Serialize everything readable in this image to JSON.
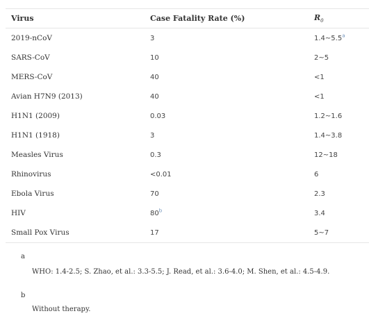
{
  "table": {
    "headers": {
      "virus": "Virus",
      "cfr": "Case Fatality Rate (%)",
      "r0_base": "R",
      "r0_sub": "0"
    },
    "rows": [
      {
        "virus": "2019-nCoV",
        "cfr": "3",
        "cfr_note": "",
        "r0": "1.4~5.5",
        "r0_note": "a"
      },
      {
        "virus": "SARS-CoV",
        "cfr": "10",
        "cfr_note": "",
        "r0": "2~5",
        "r0_note": ""
      },
      {
        "virus": "MERS-CoV",
        "cfr": "40",
        "cfr_note": "",
        "r0": "<1",
        "r0_note": ""
      },
      {
        "virus": "Avian H7N9 (2013)",
        "cfr": "40",
        "cfr_note": "",
        "r0": "<1",
        "r0_note": ""
      },
      {
        "virus": "H1N1 (2009)",
        "cfr": "0.03",
        "cfr_note": "",
        "r0": "1.2~1.6",
        "r0_note": ""
      },
      {
        "virus": "H1N1 (1918)",
        "cfr": "3",
        "cfr_note": "",
        "r0": "1.4~3.8",
        "r0_note": ""
      },
      {
        "virus": "Measles Virus",
        "cfr": "0.3",
        "cfr_note": "",
        "r0": "12~18",
        "r0_note": ""
      },
      {
        "virus": "Rhinovirus",
        "cfr": "<0.01",
        "cfr_note": "",
        "r0": "6",
        "r0_note": ""
      },
      {
        "virus": "Ebola Virus",
        "cfr": "70",
        "cfr_note": "",
        "r0": "2.3",
        "r0_note": ""
      },
      {
        "virus": "HIV",
        "cfr": "80",
        "cfr_note": "b",
        "r0": "3.4",
        "r0_note": ""
      },
      {
        "virus": "Small Pox Virus",
        "cfr": "17",
        "cfr_note": "",
        "r0": "5~7",
        "r0_note": ""
      }
    ]
  },
  "footnotes": [
    {
      "mark": "a",
      "text": "WHO: 1.4-2.5; S. Zhao, et al.: 3.3-5.5; J. Read, et al.: 3.6-4.0; M. Shen, et al.: 4.5-4.9."
    },
    {
      "mark": "b",
      "text": "Without therapy."
    }
  ]
}
